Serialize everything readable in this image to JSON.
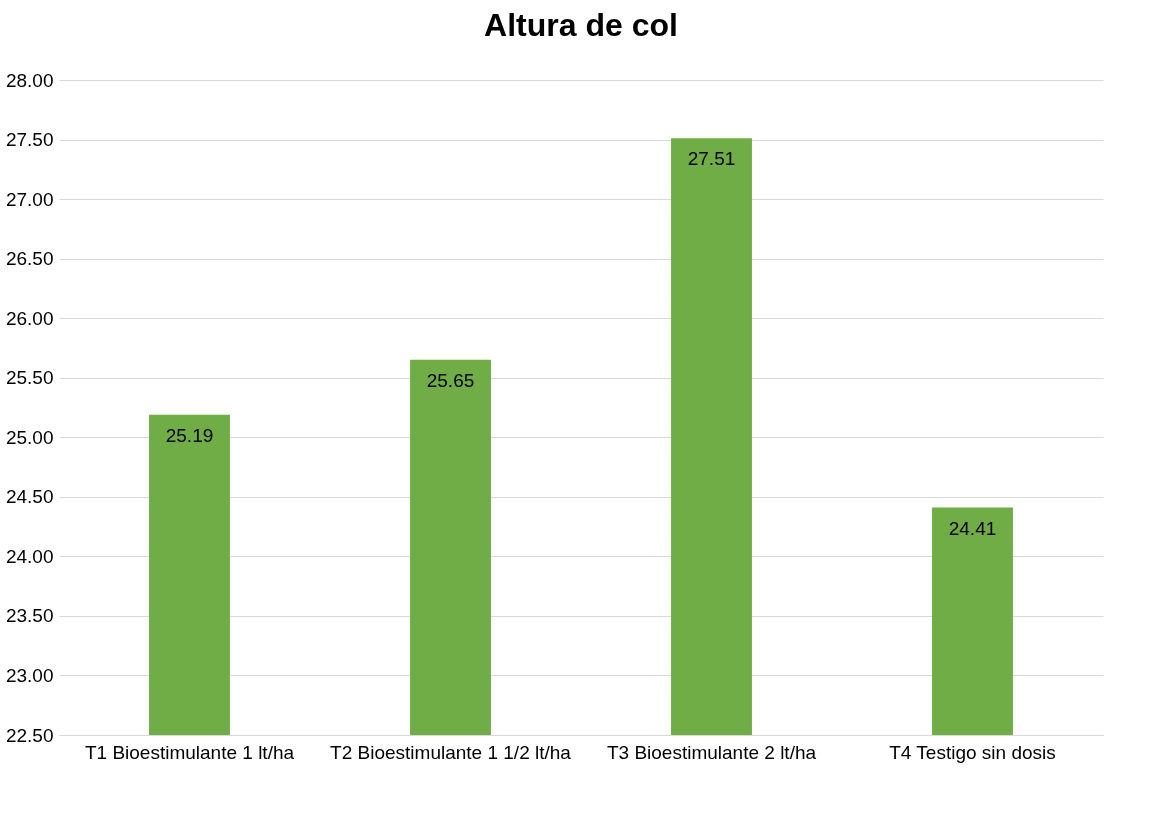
{
  "chart_data": {
    "type": "bar",
    "title": "Altura de col",
    "categories": [
      "T1 Bioestimulante 1 lt/ha",
      "T2 Bioestimulante 1 1/2 lt/ha",
      "T3 Bioestimulante 2 lt/ha",
      "T4 Testigo sin dosis"
    ],
    "values": [
      25.19,
      25.65,
      27.51,
      24.41
    ],
    "color": "#70ad47",
    "ylim": [
      22.5,
      28
    ],
    "yticks": [
      {
        "value": 22.5,
        "label": "22.50"
      },
      {
        "value": 23,
        "label": "23.00"
      },
      {
        "value": 23.5,
        "label": "23.50"
      },
      {
        "value": 24,
        "label": "24.00"
      },
      {
        "value": 24.5,
        "label": "24.50"
      },
      {
        "value": 25,
        "label": "25.00"
      },
      {
        "value": 25.5,
        "label": "25.50"
      },
      {
        "value": 26,
        "label": "26.00"
      },
      {
        "value": 26.5,
        "label": "26.50"
      },
      {
        "value": 27,
        "label": "27.00"
      },
      {
        "value": 27.5,
        "label": "27.50"
      },
      {
        "value": 28,
        "label": "28.00"
      }
    ],
    "grid": true,
    "data_labels": true
  }
}
